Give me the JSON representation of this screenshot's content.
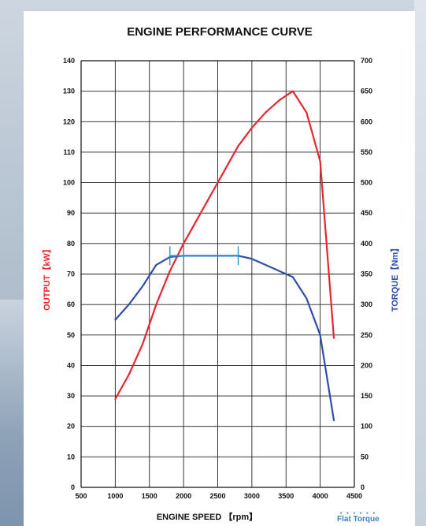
{
  "chart_data": {
    "type": "line",
    "title": "ENGINE PERFORMANCE CURVE",
    "xlabel": "ENGINE SPEED 【rpm】",
    "ylabel": "OUTPUT【kW】",
    "y2label": "TORQUE【Nm】",
    "xlim": [
      500,
      4500
    ],
    "ylim": [
      0,
      140
    ],
    "y2lim": [
      0,
      700
    ],
    "x_ticks": [
      "500",
      "1000",
      "1500",
      "2000",
      "2500",
      "3000",
      "3500",
      "4000",
      "4500"
    ],
    "y_ticks": [
      "0",
      "10",
      "20",
      "30",
      "40",
      "50",
      "60",
      "70",
      "80",
      "90",
      "100",
      "110",
      "120",
      "130",
      "140"
    ],
    "y2_ticks": [
      "0",
      "50",
      "100",
      "150",
      "200",
      "250",
      "300",
      "350",
      "400",
      "450",
      "500",
      "550",
      "600",
      "650",
      "700"
    ],
    "grid": true,
    "series": [
      {
        "name": "OUTPUT",
        "axis": "left",
        "color": "#e8262f",
        "x": [
          1000,
          1200,
          1400,
          1600,
          1800,
          2000,
          2200,
          2400,
          2600,
          2800,
          3000,
          3200,
          3400,
          3600,
          3800,
          4000,
          4200
        ],
        "y": [
          29,
          37,
          47,
          60,
          71,
          80,
          88,
          96,
          104,
          112,
          118,
          123,
          127,
          130,
          123,
          107,
          49
        ]
      },
      {
        "name": "TORQUE",
        "axis": "right",
        "color": "#2e4fa8",
        "x": [
          1000,
          1200,
          1400,
          1600,
          1800,
          2000,
          2200,
          2400,
          2600,
          2800,
          3000,
          3200,
          3400,
          3600,
          3800,
          4000,
          4200
        ],
        "y": [
          275,
          300,
          330,
          365,
          378,
          380,
          380,
          380,
          380,
          380,
          375,
          365,
          355,
          345,
          310,
          250,
          110
        ]
      }
    ],
    "flat_torque_range": {
      "x": [
        1800,
        2800
      ],
      "y": 380,
      "color": "#2a8fd0"
    }
  },
  "badge": {
    "dots": "• • • • • •",
    "text": "Flat Torque"
  }
}
